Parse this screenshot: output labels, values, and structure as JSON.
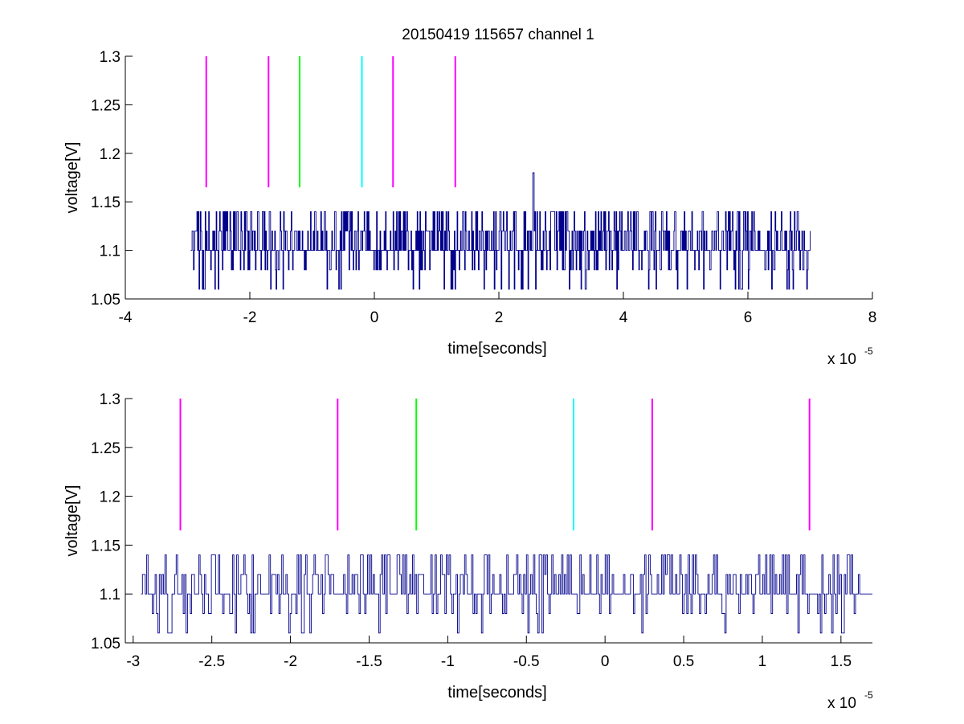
{
  "chart_data": [
    {
      "type": "line",
      "title": "20150419 115657 channel 1",
      "xlabel": "time[seconds]",
      "ylabel": "voltage[V]",
      "x_multiplier": {
        "base": "x 10",
        "exponent": "-5"
      },
      "xlim": [
        -4,
        8
      ],
      "ylim": [
        1.05,
        1.3
      ],
      "x_ticks": [
        -4,
        -2,
        0,
        2,
        4,
        6,
        8
      ],
      "x_tick_labels": [
        "-4",
        "-2",
        "0",
        "2",
        "4",
        "6",
        "8"
      ],
      "y_ticks": [
        1.05,
        1.1,
        1.15,
        1.2,
        1.25,
        1.3
      ],
      "y_tick_labels": [
        "1.05",
        "1.1",
        "1.15",
        "1.2",
        "1.25",
        "1.3"
      ],
      "grid": false,
      "markers": [
        {
          "x": -2.7,
          "y_range": [
            1.165,
            1.3
          ],
          "color": "#ff00ff"
        },
        {
          "x": -1.7,
          "y_range": [
            1.165,
            1.3
          ],
          "color": "#ff00ff"
        },
        {
          "x": -1.2,
          "y_range": [
            1.165,
            1.3
          ],
          "color": "#00ff00"
        },
        {
          "x": -0.2,
          "y_range": [
            1.165,
            1.3
          ],
          "color": "#00ffff"
        },
        {
          "x": 0.3,
          "y_range": [
            1.165,
            1.3
          ],
          "color": "#ff00ff"
        },
        {
          "x": 1.3,
          "y_range": [
            1.165,
            1.3
          ],
          "color": "#ff00ff"
        }
      ],
      "signal": {
        "color": "#00008b",
        "x_range": [
          -2.95,
          7.0
        ],
        "levels": [
          1.06,
          1.08,
          1.1,
          1.12,
          1.14
        ],
        "baseline": 1.1,
        "spikes": [
          {
            "x": 2.55,
            "y": 1.18
          }
        ]
      }
    },
    {
      "type": "line",
      "title": "",
      "xlabel": "time[seconds]",
      "ylabel": "voltage[V]",
      "x_multiplier": {
        "base": "x 10",
        "exponent": "-5"
      },
      "xlim": [
        -3.05,
        1.7
      ],
      "ylim": [
        1.05,
        1.3
      ],
      "x_ticks": [
        -3,
        -2.5,
        -2,
        -1.5,
        -1,
        -0.5,
        0,
        0.5,
        1,
        1.5
      ],
      "x_tick_labels": [
        "-3",
        "-2.5",
        "-2",
        "-1.5",
        "-1",
        "-0.5",
        "0",
        "0.5",
        "1",
        "1.5"
      ],
      "y_ticks": [
        1.05,
        1.1,
        1.15,
        1.2,
        1.25,
        1.3
      ],
      "y_tick_labels": [
        "1.05",
        "1.1",
        "1.15",
        "1.2",
        "1.25",
        "1.3"
      ],
      "grid": false,
      "markers": [
        {
          "x": -2.7,
          "y_range": [
            1.165,
            1.3
          ],
          "color": "#ff00ff"
        },
        {
          "x": -1.7,
          "y_range": [
            1.165,
            1.3
          ],
          "color": "#ff00ff"
        },
        {
          "x": -1.2,
          "y_range": [
            1.165,
            1.3
          ],
          "color": "#00ff00"
        },
        {
          "x": -0.2,
          "y_range": [
            1.165,
            1.3
          ],
          "color": "#00ffff"
        },
        {
          "x": 0.3,
          "y_range": [
            1.165,
            1.3
          ],
          "color": "#ff00ff"
        },
        {
          "x": 1.3,
          "y_range": [
            1.165,
            1.3
          ],
          "color": "#ff00ff"
        }
      ],
      "signal": {
        "color": "#00008b",
        "x_range": [
          -2.95,
          1.7
        ],
        "levels": [
          1.06,
          1.08,
          1.1,
          1.12,
          1.14
        ],
        "baseline": 1.1,
        "spikes": []
      }
    }
  ]
}
